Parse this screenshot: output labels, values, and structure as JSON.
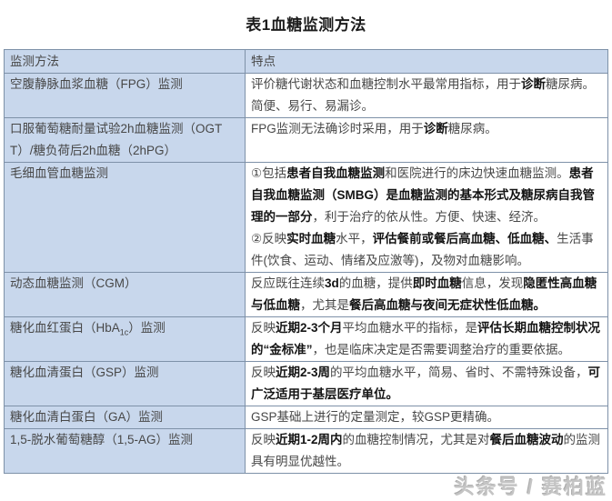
{
  "page": {
    "title": "表1血糖监测方法"
  },
  "colors": {
    "header_and_method_cell_bg": "#c8d7ec",
    "table_border": "#7e91a8",
    "body_text": "#474747",
    "bold_text": "#141414",
    "watermark_gray": "#c4c4c4"
  },
  "table": {
    "headers": [
      {
        "label": "监测方法"
      },
      {
        "label": "特点"
      }
    ],
    "rows": [
      {
        "method": [
          {
            "t": "空腹静脉血浆血糖（FPG）监测"
          }
        ],
        "features": [
          [
            {
              "t": "评价糖代谢状态和血糖控制水平最常用指标，用于"
            },
            {
              "t": "诊断",
              "b": true
            },
            {
              "t": "糖尿病。简便、易行、易漏诊。"
            }
          ]
        ]
      },
      {
        "method": [
          {
            "t": "口服葡萄糖耐量试验2h血糖监测（OGTT）/糖负荷后2h血糖（2hPG）"
          }
        ],
        "features": [
          [
            {
              "t": "FPG监测无法确诊时采用，用于"
            },
            {
              "t": "诊断",
              "b": true
            },
            {
              "t": "糖尿病。"
            }
          ]
        ]
      },
      {
        "method": [
          {
            "t": "毛细血管血糖监测"
          }
        ],
        "features": [
          [
            {
              "t": "①包括"
            },
            {
              "t": "患者自我血糖监测",
              "b": true
            },
            {
              "t": "和医院进行的床边快速血糖监测。"
            },
            {
              "t": "患者自我血糖监测（SMBG）是血糖监测的基本形式及糖尿病自我管理的一部分",
              "b": true
            },
            {
              "t": "，利于治疗的依从性。方便、快速、经济。"
            }
          ],
          [
            {
              "t": "②反映"
            },
            {
              "t": "实时血糖",
              "b": true
            },
            {
              "t": "水平，"
            },
            {
              "t": "评估餐前或餐后高血糖、低血糖、",
              "b": true
            },
            {
              "t": "生活事件(饮食、运动、情绪及应激等)，及物对血糖影响。"
            }
          ]
        ]
      },
      {
        "method": [
          {
            "t": "动态血糖监测（CGM）"
          }
        ],
        "features": [
          [
            {
              "t": "反应既往连续"
            },
            {
              "t": "3d",
              "b": true
            },
            {
              "t": "的血糖，提供"
            },
            {
              "t": "即时血糖",
              "b": true
            },
            {
              "t": "信息，发现"
            },
            {
              "t": "隐匿性高血糖与低血糖",
              "b": true
            },
            {
              "t": "，尤其是"
            },
            {
              "t": "餐后高血糖与夜间无症状性低血糖。",
              "b": true
            }
          ]
        ]
      },
      {
        "method": [
          {
            "t": "糖化血红蛋白（HbA"
          },
          {
            "t": "1c",
            "sub": true
          },
          {
            "t": "）监测"
          }
        ],
        "features": [
          [
            {
              "t": "反映"
            },
            {
              "t": "近期2-3个月",
              "b": true
            },
            {
              "t": "平均血糖水平的指标，是"
            },
            {
              "t": "评估长期血糖控制状况的“金标准”",
              "b": true
            },
            {
              "t": "，也是临床决定是否需要调整治疗的重要依据。"
            }
          ]
        ]
      },
      {
        "method": [
          {
            "t": "糖化血清蛋白（GSP）监测"
          }
        ],
        "features": [
          [
            {
              "t": "反映"
            },
            {
              "t": "近期2-3周",
              "b": true
            },
            {
              "t": "的平均血糖水平，简易、省时、不需特殊设备，"
            },
            {
              "t": "可广泛适用于基层医疗单位。",
              "b": true
            }
          ]
        ]
      },
      {
        "method": [
          {
            "t": "糖化血清白蛋白（GA）监测"
          }
        ],
        "features": [
          [
            {
              "t": "GSP基础上进行的定量测定，较GSP更精确。"
            }
          ]
        ]
      },
      {
        "method": [
          {
            "t": "1,5-脱水葡萄糖醇（1,5-AG）监测"
          }
        ],
        "features": [
          [
            {
              "t": "反映"
            },
            {
              "t": "近期1-2周内",
              "b": true
            },
            {
              "t": "的血糖控制情况，尤其是对"
            },
            {
              "t": "餐后血糖波动",
              "b": true
            },
            {
              "t": "的监测具有明显优越性。"
            }
          ]
        ]
      }
    ]
  },
  "watermark": {
    "text": "头条号 / 赛柏蓝"
  }
}
